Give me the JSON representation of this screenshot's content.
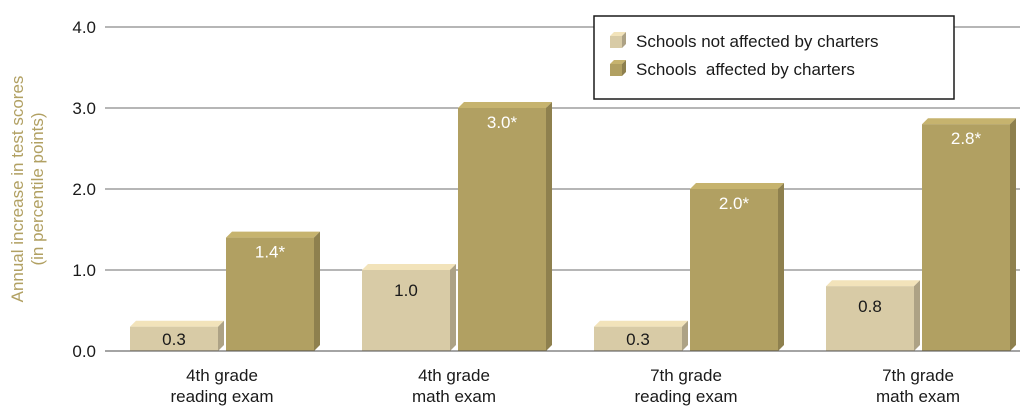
{
  "chart_data": {
    "type": "bar",
    "ylabel_lines": [
      "Annual increase in test scores",
      "(in percentile points)"
    ],
    "ylim": [
      0,
      4
    ],
    "yticks": [
      "0.0",
      "1.0",
      "2.0",
      "3.0",
      "4.0"
    ],
    "grid": true,
    "categories": [
      [
        "4th grade",
        "reading exam"
      ],
      [
        "4th grade",
        "math exam"
      ],
      [
        "7th grade",
        "reading exam"
      ],
      [
        "7th grade",
        "math exam"
      ]
    ],
    "series": [
      {
        "name": "Schools not affected by charters",
        "values": [
          0.3,
          1.0,
          0.3,
          0.8
        ],
        "labels": [
          "0.3",
          "1.0",
          "0.3",
          "0.8"
        ],
        "color": "#d8cba6"
      },
      {
        "name": "Schools  affected by charters",
        "values": [
          1.4,
          3.0,
          2.0,
          2.8
        ],
        "labels": [
          "1.4*",
          "3.0*",
          "2.0*",
          "2.8*"
        ],
        "color": "#b1a062"
      }
    ],
    "legend_position": "top-right",
    "ylabel_color": "#b1a062"
  }
}
